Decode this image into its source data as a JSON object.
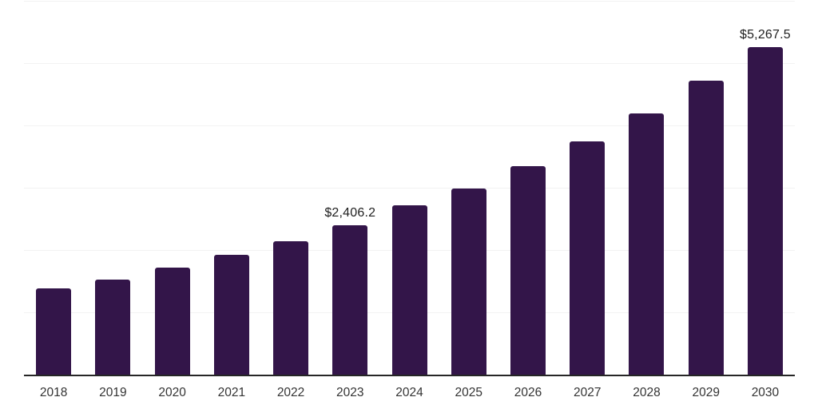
{
  "chart_data": {
    "type": "bar",
    "title": "",
    "xlabel": "",
    "ylabel": "",
    "categories": [
      "2018",
      "2019",
      "2020",
      "2021",
      "2022",
      "2023",
      "2024",
      "2025",
      "2026",
      "2027",
      "2028",
      "2029",
      "2030"
    ],
    "values": [
      1395.0,
      1538.0,
      1730.0,
      1936.0,
      2154.0,
      2406.2,
      2731.0,
      3000.0,
      3359.0,
      3756.0,
      4205.0,
      4737.0,
      5267.5
    ],
    "point_labels": [
      "",
      "",
      "",
      "",
      "",
      "$2,406.2",
      "",
      "",
      "",
      "",
      "",
      "",
      "$5,267.5"
    ],
    "ylim": [
      0,
      6000
    ],
    "gridline_step": 1000,
    "grid_on": true,
    "legend": "none",
    "colors": {
      "bar": "#331549",
      "gridline": "#f2f2f2",
      "axis": "#262626",
      "label_text": "#1f1f1f",
      "tick_text": "#333333",
      "background": "#ffffff"
    }
  }
}
